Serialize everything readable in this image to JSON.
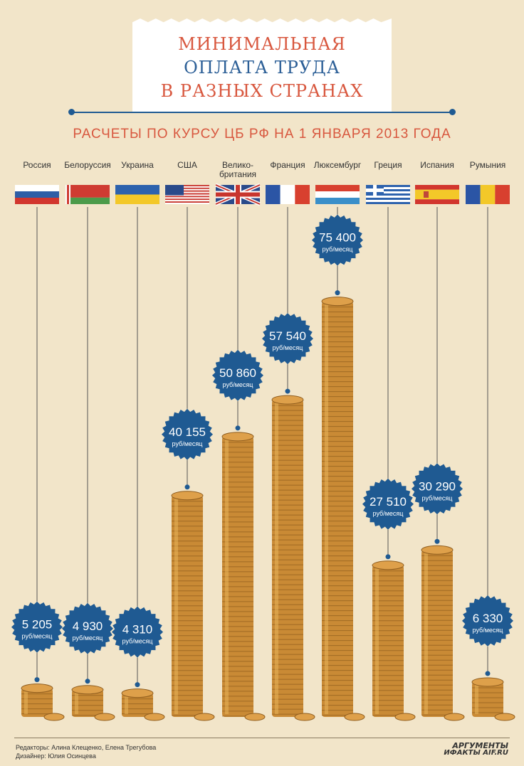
{
  "title": {
    "line1": "МИНИМАЛЬНАЯ",
    "line2": "ОПЛАТА ТРУДА",
    "line3": "В РАЗНЫХ СТРАНАХ"
  },
  "subtitle": "РАСЧЕТЫ ПО КУРСУ ЦБ РФ НА 1 ЯНВАРЯ 2013 ГОДА",
  "colors": {
    "background": "#f2e5c9",
    "title_red": "#d8573e",
    "title_blue": "#2c5f97",
    "badge_blue": "#1f5a92",
    "coin_gold": "#c98a35"
  },
  "chart_data": {
    "type": "bar",
    "unit_label": "руб/месяц",
    "categories": [
      "Россия",
      "Белоруссия",
      "Украина",
      "США",
      "Велико-британия",
      "Франция",
      "Люксембург",
      "Греция",
      "Испания",
      "Румыния"
    ],
    "values": [
      5205,
      4930,
      4310,
      40155,
      50860,
      57540,
      75400,
      27510,
      30290,
      6330
    ],
    "value_labels": [
      "5 205",
      "4 930",
      "4 310",
      "40 155",
      "50 860",
      "57 540",
      "75 400",
      "27 510",
      "30 290",
      "6 330"
    ],
    "flags": [
      "flag-russia",
      "flag-belarus",
      "flag-ukraine",
      "flag-usa",
      "flag-uk",
      "flag-france",
      "flag-luxembourg",
      "flag-greece",
      "flag-spain",
      "flag-romania"
    ],
    "ylim": [
      0,
      80000
    ]
  },
  "footer": {
    "editors": "Редакторы: Алина Клещенко, Елена Трегубова",
    "designer": "Дизайнер: Юлия Осинцева",
    "logo_top": "АРГУМЕНТЫ",
    "logo_bottom": "ИФАКТЫ AIF.RU"
  }
}
